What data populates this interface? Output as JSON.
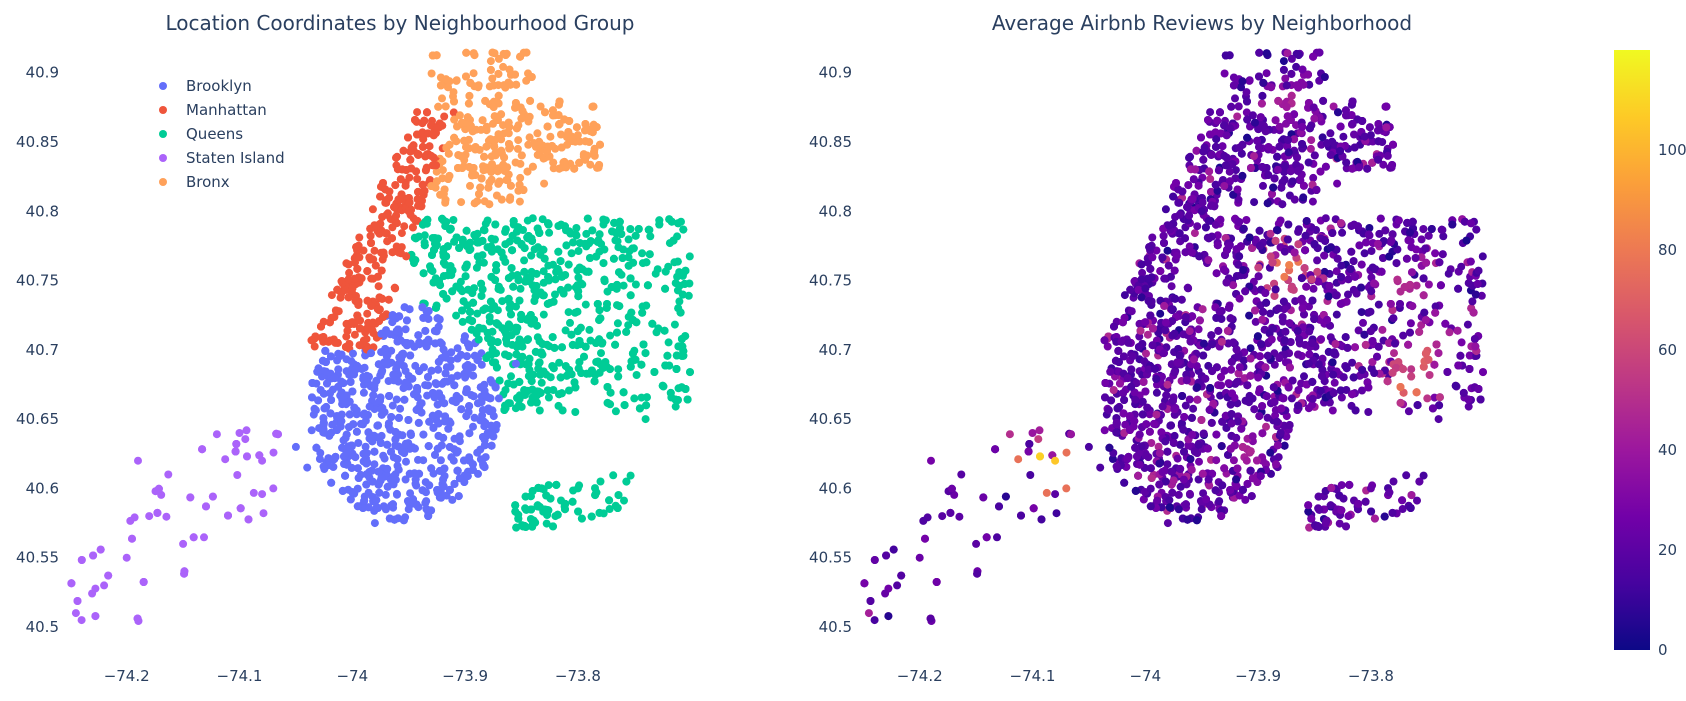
{
  "chart_data": [
    {
      "type": "scatter",
      "title": "Location Coordinates by Neighbourhood Group",
      "xlabel": "",
      "ylabel": "",
      "xlim": [
        -74.26,
        -73.69
      ],
      "ylim": [
        40.5,
        40.92
      ],
      "x_ticks": [
        -74.2,
        -74.1,
        -74,
        -73.9,
        -73.8
      ],
      "x_tick_labels": [
        "−74.2",
        "−74.1",
        "−74",
        "−73.9",
        "−73.8"
      ],
      "y_ticks": [
        40.5,
        40.55,
        40.6,
        40.65,
        40.7,
        40.75,
        40.8,
        40.85,
        40.9
      ],
      "y_tick_labels": [
        "40.5",
        "40.55",
        "40.6",
        "40.65",
        "40.7",
        "40.75",
        "40.8",
        "40.85",
        "40.9"
      ],
      "grid": false,
      "legend_position": "top-left",
      "series": [
        {
          "name": "Brooklyn",
          "color": "#636efa",
          "regions": [
            [
              -74.04,
              -73.86,
              40.575,
              40.735
            ]
          ],
          "extra_points": [
            [
              -73.9,
              40.68
            ],
            [
              -73.87,
              40.665
            ],
            [
              -73.855,
              40.69
            ],
            [
              -73.88,
              40.64
            ],
            [
              -74.05,
              40.63
            ],
            [
              -74.04,
              40.615
            ],
            [
              -73.95,
              40.585
            ],
            [
              -73.98,
              40.575
            ],
            [
              -73.91,
              40.62
            ]
          ]
        },
        {
          "name": "Manhattan",
          "color": "#ef553b",
          "regions": [
            [
              -74.02,
              -73.91,
              40.7,
              40.875
            ]
          ],
          "extra_points": [
            [
              -73.925,
              40.86
            ],
            [
              -73.93,
              40.84
            ],
            [
              -73.95,
              40.8
            ],
            [
              -74.015,
              40.705
            ],
            [
              -74.0,
              40.72
            ]
          ]
        },
        {
          "name": "Queens",
          "color": "#00cc96",
          "regions": [
            [
              -73.96,
              -73.7,
              40.65,
              40.795
            ],
            [
              -73.86,
              -73.75,
              40.57,
              40.61
            ]
          ],
          "extra_points": [
            [
              -73.72,
              40.76
            ],
            [
              -73.71,
              40.735
            ],
            [
              -73.74,
              40.65
            ],
            [
              -73.75,
              40.665
            ],
            [
              -73.84,
              40.795
            ],
            [
              -73.82,
              40.58
            ],
            [
              -73.78,
              40.605
            ],
            [
              -73.8,
              40.6
            ],
            [
              -73.84,
              40.575
            ]
          ]
        },
        {
          "name": "Staten Island",
          "color": "#ab63fa",
          "regions": [
            [
              -74.25,
              -74.06,
              40.5,
              40.645
            ]
          ],
          "extra_points": [
            [
              -74.245,
              40.51
            ],
            [
              -74.24,
              40.505
            ],
            [
              -74.2,
              40.55
            ],
            [
              -74.22,
              40.53
            ],
            [
              -74.1,
              40.64
            ],
            [
              -74.08,
              40.62
            ],
            [
              -74.07,
              40.6
            ],
            [
              -74.19,
              40.62
            ],
            [
              -74.18,
              40.58
            ],
            [
              -74.15,
              40.56
            ]
          ]
        },
        {
          "name": "Bronx",
          "color": "#ffa15a",
          "regions": [
            [
              -73.93,
              -73.78,
              40.805,
              40.915
            ]
          ],
          "extra_points": [
            [
              -73.79,
              40.85
            ],
            [
              -73.785,
              40.84
            ],
            [
              -73.8,
              40.855
            ],
            [
              -73.83,
              40.82
            ],
            [
              -73.86,
              40.81
            ],
            [
              -73.87,
              40.91
            ]
          ]
        }
      ]
    },
    {
      "type": "scatter",
      "title": "Average Airbnb Reviews by Neighborhood",
      "xlabel": "",
      "ylabel": "",
      "xlim": [
        -74.26,
        -73.69
      ],
      "ylim": [
        40.5,
        40.92
      ],
      "x_ticks": [
        -74.2,
        -74.1,
        -74,
        -73.9,
        -73.8
      ],
      "x_tick_labels": [
        "−74.2",
        "−74.1",
        "−74",
        "−73.9",
        "−73.8"
      ],
      "y_ticks": [
        40.5,
        40.55,
        40.6,
        40.65,
        40.7,
        40.75,
        40.8,
        40.85,
        40.9
      ],
      "y_tick_labels": [
        "40.5",
        "40.55",
        "40.6",
        "40.65",
        "40.7",
        "40.75",
        "40.8",
        "40.85",
        "40.9"
      ],
      "grid": false,
      "colorscale": "Plasma",
      "colorscale_stops": [
        "#0d0887",
        "#46039f",
        "#7201a8",
        "#9c179e",
        "#bd3786",
        "#d8576b",
        "#ed7953",
        "#fb9f3a",
        "#fdca26",
        "#f0f921"
      ],
      "color_range": [
        0,
        120
      ],
      "colorbar_ticks": [
        0,
        20,
        40,
        60,
        80,
        100
      ],
      "colorbar_tick_labels": [
        "0",
        "20",
        "40",
        "60",
        "80",
        "100"
      ],
      "typical_value": 20,
      "hotspots": [
        {
          "x": -73.875,
          "y": 40.76,
          "value": 82
        },
        {
          "x": -73.765,
          "y": 40.67,
          "value": 75
        },
        {
          "x": -73.76,
          "y": 40.695,
          "value": 68
        },
        {
          "x": -74.09,
          "y": 40.615,
          "value": 110
        },
        {
          "x": -74.085,
          "y": 40.635,
          "value": 55
        },
        {
          "x": -73.87,
          "y": 40.88,
          "value": 45
        },
        {
          "x": -73.77,
          "y": 40.745,
          "value": 48
        },
        {
          "x": -73.77,
          "y": 40.685,
          "value": 58
        },
        {
          "x": -73.91,
          "y": 40.625,
          "value": 45
        }
      ]
    }
  ]
}
